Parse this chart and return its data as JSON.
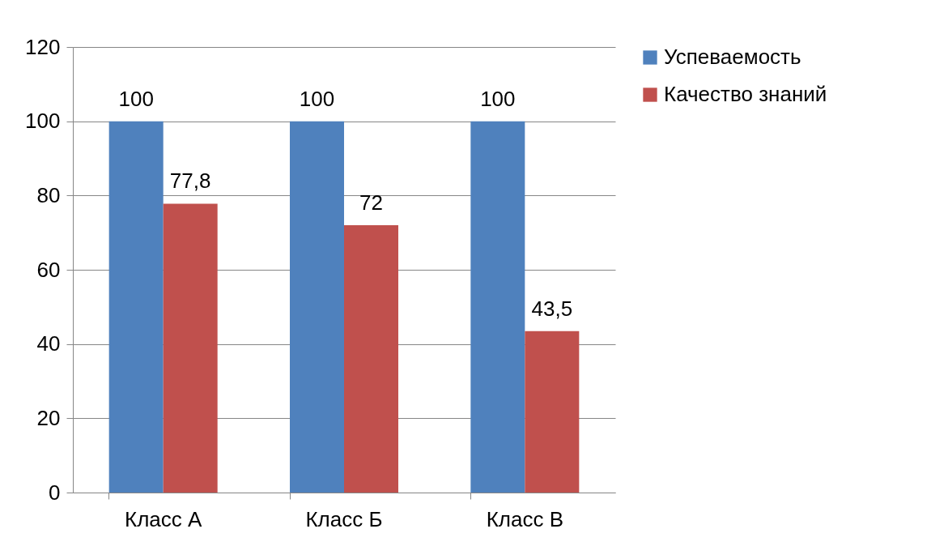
{
  "chart_data": {
    "type": "bar",
    "categories": [
      "Класс А",
      "Класс Б",
      "Класс В"
    ],
    "series": [
      {
        "name": "Успеваемость",
        "color": "#4f81bd",
        "values": [
          100,
          100,
          100
        ],
        "value_labels": [
          "100",
          "100",
          "100"
        ]
      },
      {
        "name": "Качество знаний",
        "color": "#c0504d",
        "values": [
          77.8,
          72,
          43.5
        ],
        "value_labels": [
          "77,8",
          "72",
          "43,5"
        ]
      }
    ],
    "ylim": [
      0,
      120
    ],
    "yticks": [
      0,
      20,
      40,
      60,
      80,
      100,
      120
    ],
    "grid": "y",
    "legend": "right"
  }
}
